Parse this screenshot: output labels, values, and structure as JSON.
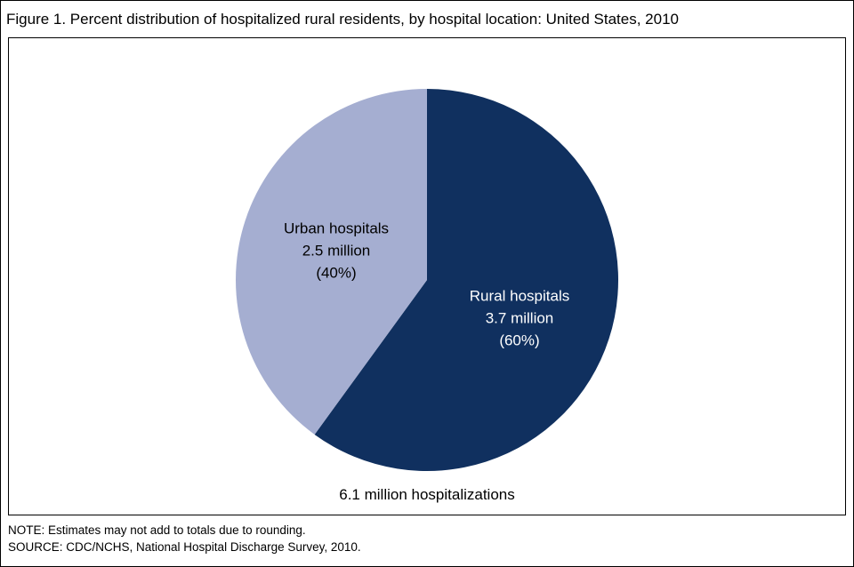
{
  "title": "Figure 1. Percent distribution of hospitalized rural residents, by hospital location: United States, 2010",
  "chart_data": {
    "type": "pie",
    "title": "Figure 1. Percent distribution of hospitalized rural residents, by hospital location: United States, 2010",
    "start_angle_deg": 0,
    "direction": "clockwise",
    "labels_inside": true,
    "legend_position": "none",
    "slices": [
      {
        "label": "Rural hospitals",
        "value_label": "3.7 million",
        "pct_label": "(60%)",
        "value_millions": 3.7,
        "percent": 60,
        "color": "#10305f",
        "text_color": "#ffffff"
      },
      {
        "label": "Urban hospitals",
        "value_label": "2.5 million",
        "pct_label": "(40%)",
        "value_millions": 2.5,
        "percent": 40,
        "color": "#a5aed1",
        "text_color": "#000000"
      }
    ],
    "total_label": "6.1 million hospitalizations",
    "total_millions": 6.1
  },
  "notes": {
    "note": "NOTE: Estimates may not add to totals due to rounding.",
    "source": "SOURCE: CDC/NCHS, National Hospital Discharge Survey, 2010."
  }
}
